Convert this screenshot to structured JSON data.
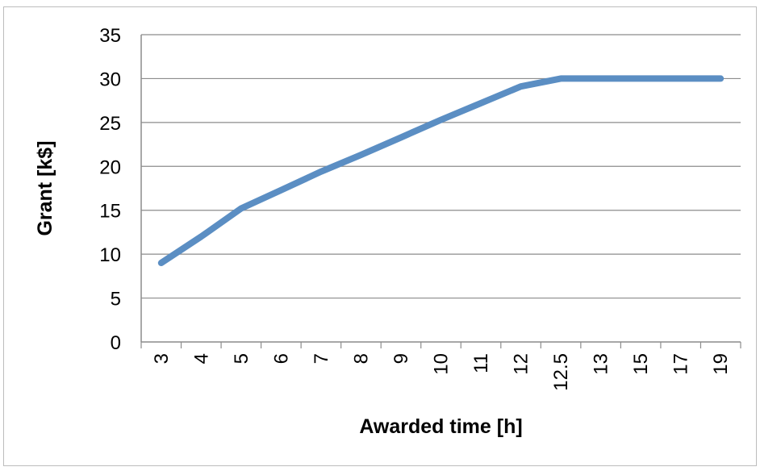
{
  "chart_data": {
    "type": "line",
    "title": "",
    "xlabel": "Awarded time [h]",
    "ylabel": "Grant [k$]",
    "categories": [
      "3",
      "4",
      "5",
      "6",
      "7",
      "8",
      "9",
      "10",
      "11",
      "12",
      "12.5",
      "13",
      "15",
      "17",
      "19"
    ],
    "series": [
      {
        "name": "",
        "values": [
          9,
          12,
          15.2,
          17.3,
          19.4,
          21.3,
          23.3,
          25.3,
          27.2,
          29.1,
          30,
          30,
          30,
          30,
          30
        ],
        "color": "#5b8ec3"
      }
    ],
    "ylim": [
      0,
      35
    ],
    "yticks": [
      "0",
      "5",
      "10",
      "15",
      "20",
      "25",
      "30",
      "35"
    ],
    "grid": true,
    "legend": "none"
  }
}
